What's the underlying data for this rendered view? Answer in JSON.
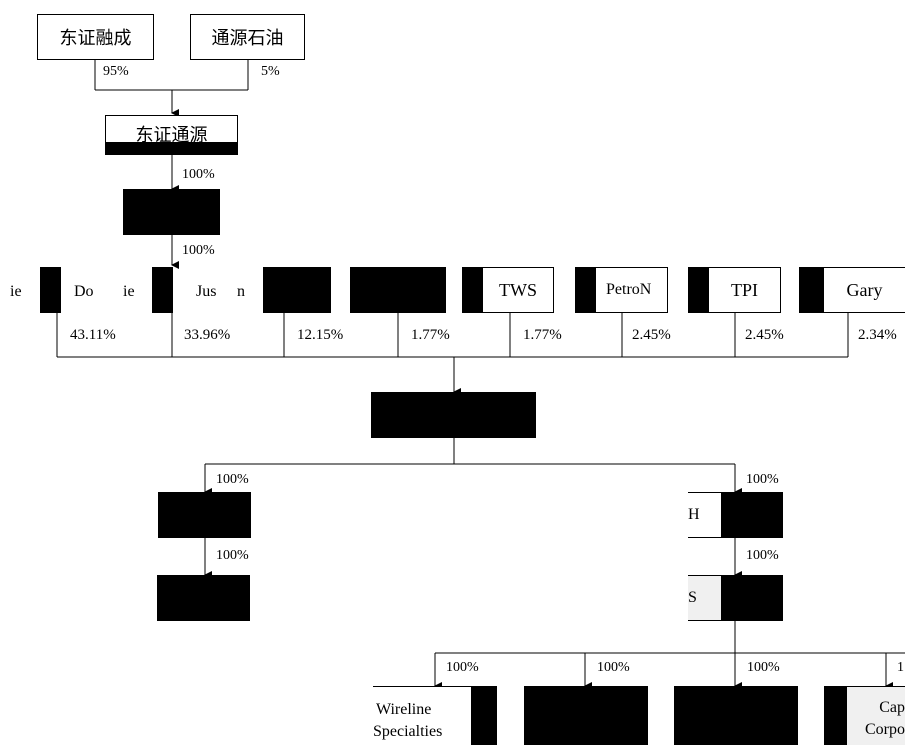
{
  "top": {
    "left_box": "东证融成",
    "right_box": "通源石油",
    "left_pct": "95%",
    "right_pct": "5%",
    "mid_box": "东证通源",
    "pct_to_level2": "100%",
    "pct_to_shareholders": "100%"
  },
  "shareholders": {
    "labels": [
      "ie",
      "Do",
      "ie",
      "Jus",
      "n",
      "",
      "",
      "TWS",
      "PetroN",
      "TPI",
      "Gary"
    ],
    "percents": [
      "43.11%",
      "33.96%",
      "12.15%",
      "1.77%",
      "1.77%",
      "2.45%",
      "2.45%",
      "2.34%"
    ]
  },
  "subs": {
    "left_pct1": "100%",
    "left_pct2": "100%",
    "right_pct1": "100%",
    "right_pct2": "100%",
    "right_box1": "H",
    "right_box2": "S"
  },
  "bottom": {
    "percents": [
      "100%",
      "100%",
      "100%",
      "1"
    ],
    "box1_line1": "Wireline",
    "box1_line2": "Specialties",
    "box4_line1": "Cap",
    "box4_line2": "Corpo"
  }
}
